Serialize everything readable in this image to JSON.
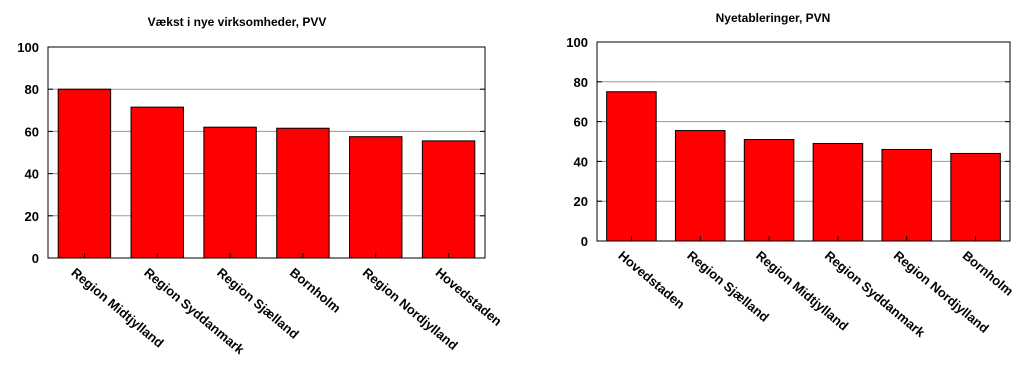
{
  "chart_data": [
    {
      "type": "bar",
      "title": "Vækst i nye virksomheder,   PVV",
      "categories": [
        "Region Midtjylland",
        "Region Syddanmark",
        "Region Sjælland",
        "Bornholm",
        "Region Nordjylland",
        "Hovedstaden"
      ],
      "values": [
        80,
        71.5,
        62,
        61.5,
        57.5,
        55.5
      ],
      "ylim": [
        0,
        100
      ],
      "yticks": [
        0,
        20,
        40,
        60,
        80,
        100
      ],
      "grid": true,
      "bar_color": "#ff0000"
    },
    {
      "type": "bar",
      "title": "Nyetableringer,   PVN",
      "categories": [
        "Hovedstaden",
        "Region Sjælland",
        "Region Midtjylland",
        "Region Syddanmark",
        "Region Nordjylland",
        "Bornholm"
      ],
      "values": [
        75,
        55.5,
        51,
        49,
        46,
        44
      ],
      "ylim": [
        0,
        100
      ],
      "yticks": [
        0,
        20,
        40,
        60,
        80,
        100
      ],
      "grid": true,
      "bar_color": "#ff0000"
    }
  ]
}
